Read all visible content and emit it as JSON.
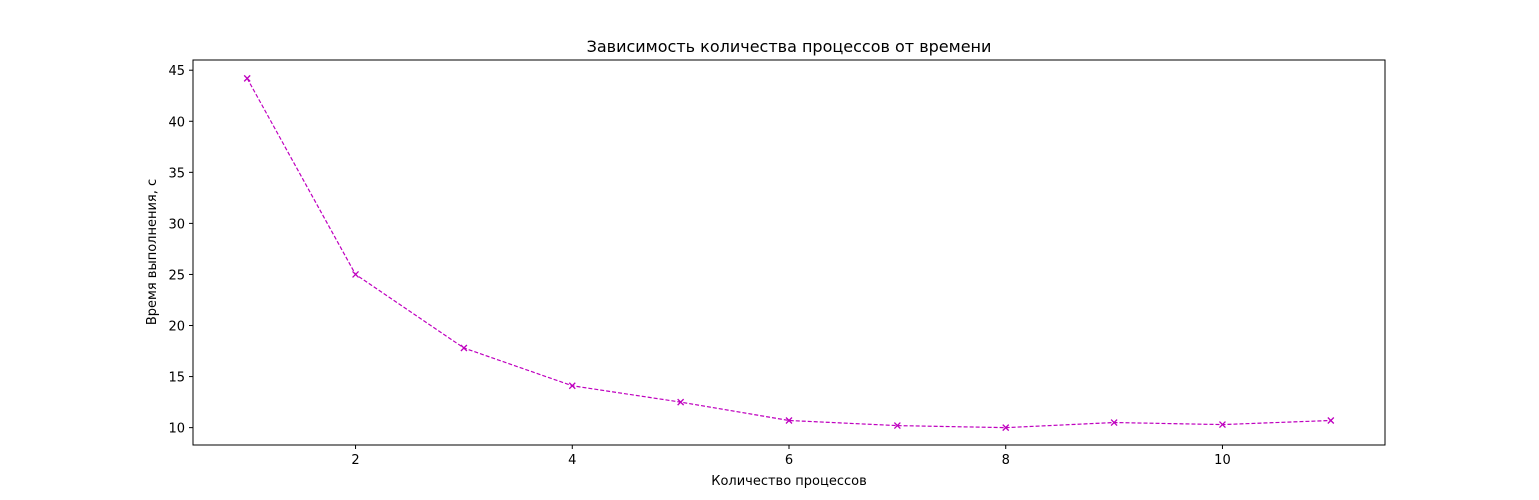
{
  "chart_data": {
    "type": "line",
    "title": "Зависимость количества процессов от времени",
    "xlabel": "Количество процессов",
    "ylabel": "Время выполнения, с",
    "xlim": [
      0.5,
      11.5
    ],
    "ylim": [
      8.3,
      46.0
    ],
    "xticks": [
      2,
      4,
      6,
      8,
      10
    ],
    "yticks": [
      10,
      15,
      20,
      25,
      30,
      35,
      40,
      45
    ],
    "grid": false,
    "legend": "none",
    "series": [
      {
        "color": "#bf00bf",
        "line_style": "dashed",
        "marker": "x",
        "x": [
          1,
          2,
          3,
          4,
          5,
          6,
          7,
          8,
          9,
          10,
          11
        ],
        "y": [
          44.2,
          25.0,
          17.8,
          14.1,
          12.5,
          10.7,
          10.2,
          10.0,
          10.5,
          10.3,
          10.7
        ]
      }
    ]
  }
}
